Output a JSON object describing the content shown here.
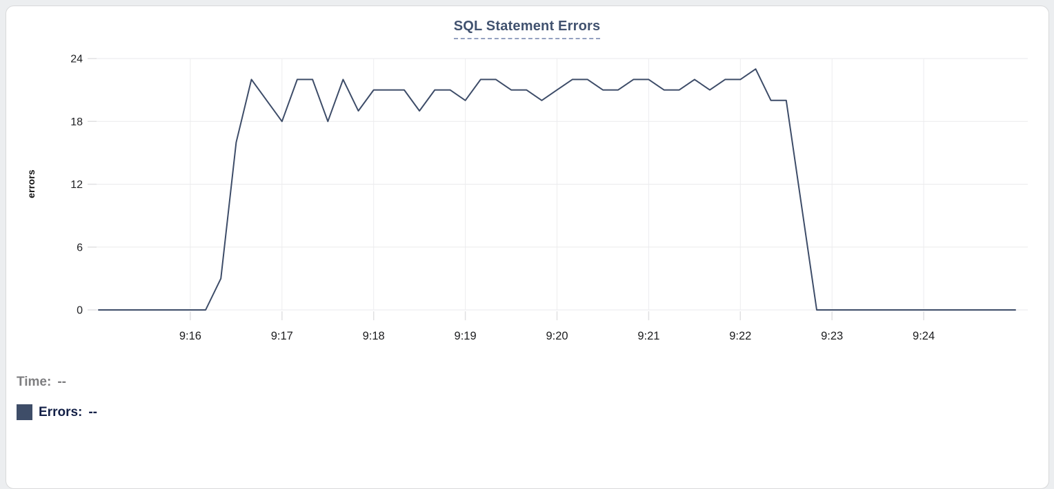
{
  "title": "SQL Statement Errors",
  "tooltip_readout": {
    "time_label": "Time:",
    "time_value": "--",
    "errors_label": "Errors:",
    "errors_value": "--"
  },
  "colors": {
    "line": "#3d4c68",
    "legend_swatch": "#3e4d68",
    "title_link": "#41526f",
    "title_underline": "#93a0bf",
    "legend_time_text": "#7e7e80",
    "legend_errors_text": "#132047",
    "grid": "#eaeaec"
  },
  "chart_data": {
    "type": "line",
    "title": "SQL Statement Errors",
    "xlabel": "",
    "ylabel": "errors",
    "ylim": [
      0,
      24
    ],
    "y_ticks": [
      0,
      6,
      12,
      18,
      24
    ],
    "x_tick_labels": [
      "9:16",
      "9:17",
      "9:18",
      "9:19",
      "9:20",
      "9:21",
      "9:22",
      "9:23",
      "9:24"
    ],
    "x_range": [
      "9:15:00",
      "9:25:00"
    ],
    "grid": true,
    "legend_position": "bottom-left",
    "series": [
      {
        "name": "Errors",
        "color": "#3d4c68",
        "points": [
          [
            "9:15:00",
            0
          ],
          [
            "9:15:10",
            0
          ],
          [
            "9:15:20",
            0
          ],
          [
            "9:15:30",
            0
          ],
          [
            "9:15:40",
            0
          ],
          [
            "9:15:50",
            0
          ],
          [
            "9:16:00",
            0
          ],
          [
            "9:16:10",
            0
          ],
          [
            "9:16:20",
            3
          ],
          [
            "9:16:30",
            16
          ],
          [
            "9:16:40",
            22
          ],
          [
            "9:16:50",
            20
          ],
          [
            "9:17:00",
            18
          ],
          [
            "9:17:10",
            22
          ],
          [
            "9:17:20",
            22
          ],
          [
            "9:17:30",
            18
          ],
          [
            "9:17:40",
            22
          ],
          [
            "9:17:50",
            19
          ],
          [
            "9:18:00",
            21
          ],
          [
            "9:18:10",
            21
          ],
          [
            "9:18:20",
            21
          ],
          [
            "9:18:30",
            19
          ],
          [
            "9:18:40",
            21
          ],
          [
            "9:18:50",
            21
          ],
          [
            "9:19:00",
            20
          ],
          [
            "9:19:10",
            22
          ],
          [
            "9:19:20",
            22
          ],
          [
            "9:19:30",
            21
          ],
          [
            "9:19:40",
            21
          ],
          [
            "9:19:50",
            20
          ],
          [
            "9:20:00",
            21
          ],
          [
            "9:20:10",
            22
          ],
          [
            "9:20:20",
            22
          ],
          [
            "9:20:30",
            21
          ],
          [
            "9:20:40",
            21
          ],
          [
            "9:20:50",
            22
          ],
          [
            "9:21:00",
            22
          ],
          [
            "9:21:10",
            21
          ],
          [
            "9:21:20",
            21
          ],
          [
            "9:21:30",
            22
          ],
          [
            "9:21:40",
            21
          ],
          [
            "9:21:50",
            22
          ],
          [
            "9:22:00",
            22
          ],
          [
            "9:22:10",
            23
          ],
          [
            "9:22:20",
            20
          ],
          [
            "9:22:30",
            20
          ],
          [
            "9:22:40",
            10
          ],
          [
            "9:22:50",
            0
          ],
          [
            "9:23:00",
            0
          ],
          [
            "9:23:10",
            0
          ],
          [
            "9:23:20",
            0
          ],
          [
            "9:23:30",
            0
          ],
          [
            "9:23:40",
            0
          ],
          [
            "9:23:50",
            0
          ],
          [
            "9:24:00",
            0
          ],
          [
            "9:24:10",
            0
          ],
          [
            "9:24:20",
            0
          ],
          [
            "9:24:30",
            0
          ],
          [
            "9:24:40",
            0
          ],
          [
            "9:24:50",
            0
          ],
          [
            "9:25:00",
            0
          ]
        ]
      }
    ]
  }
}
